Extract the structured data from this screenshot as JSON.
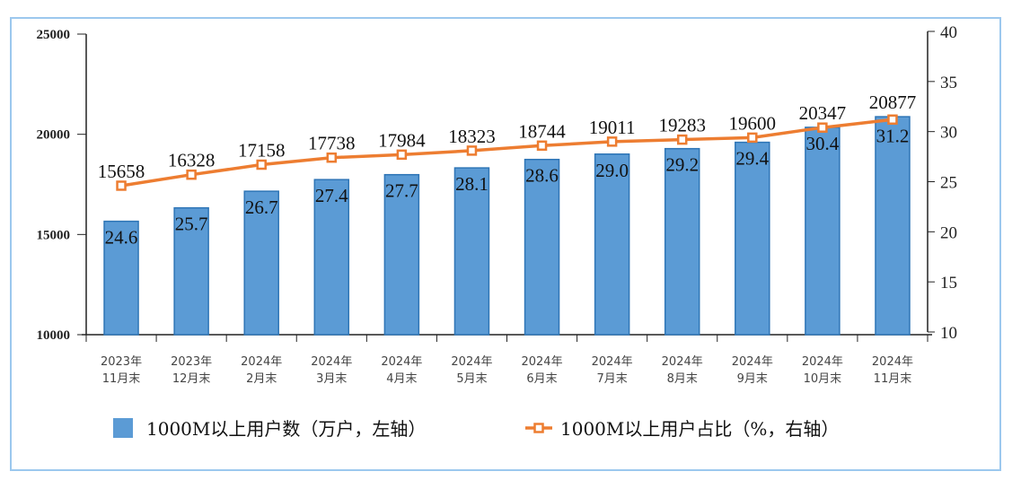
{
  "chart_data": {
    "type": "bar+line",
    "categories": [
      [
        "2023年",
        "11月末"
      ],
      [
        "2023年",
        "12月末"
      ],
      [
        "2024年",
        "2月末"
      ],
      [
        "2024年",
        "3月末"
      ],
      [
        "2024年",
        "4月末"
      ],
      [
        "2024年",
        "5月末"
      ],
      [
        "2024年",
        "6月末"
      ],
      [
        "2024年",
        "7月末"
      ],
      [
        "2024年",
        "8月末"
      ],
      [
        "2024年",
        "9月末"
      ],
      [
        "2024年",
        "10月末"
      ],
      [
        "2024年",
        "11月末"
      ]
    ],
    "series": [
      {
        "name": "1000M以上用户数（万户，左轴）",
        "type": "bar",
        "axis": "left",
        "color": "#5b9bd5",
        "values": [
          15658,
          16328,
          17158,
          17738,
          17984,
          18323,
          18744,
          19011,
          19283,
          19600,
          20347,
          20877
        ]
      },
      {
        "name": "1000M以上用户占比（%，右轴）",
        "type": "line",
        "axis": "right",
        "color": "#ed7d31",
        "values": [
          24.6,
          25.7,
          26.7,
          27.4,
          27.7,
          28.1,
          28.6,
          29.0,
          29.2,
          29.4,
          30.4,
          31.2
        ]
      }
    ],
    "left_axis": {
      "ylim": [
        10000,
        25000
      ],
      "ticks": [
        "10000",
        "15000",
        "20000",
        "25000"
      ]
    },
    "right_axis": {
      "ylim": [
        10,
        40
      ],
      "ticks": [
        "10",
        "15",
        "20",
        "25",
        "30",
        "35",
        "40"
      ]
    },
    "legend": "bottom",
    "grid": false
  }
}
